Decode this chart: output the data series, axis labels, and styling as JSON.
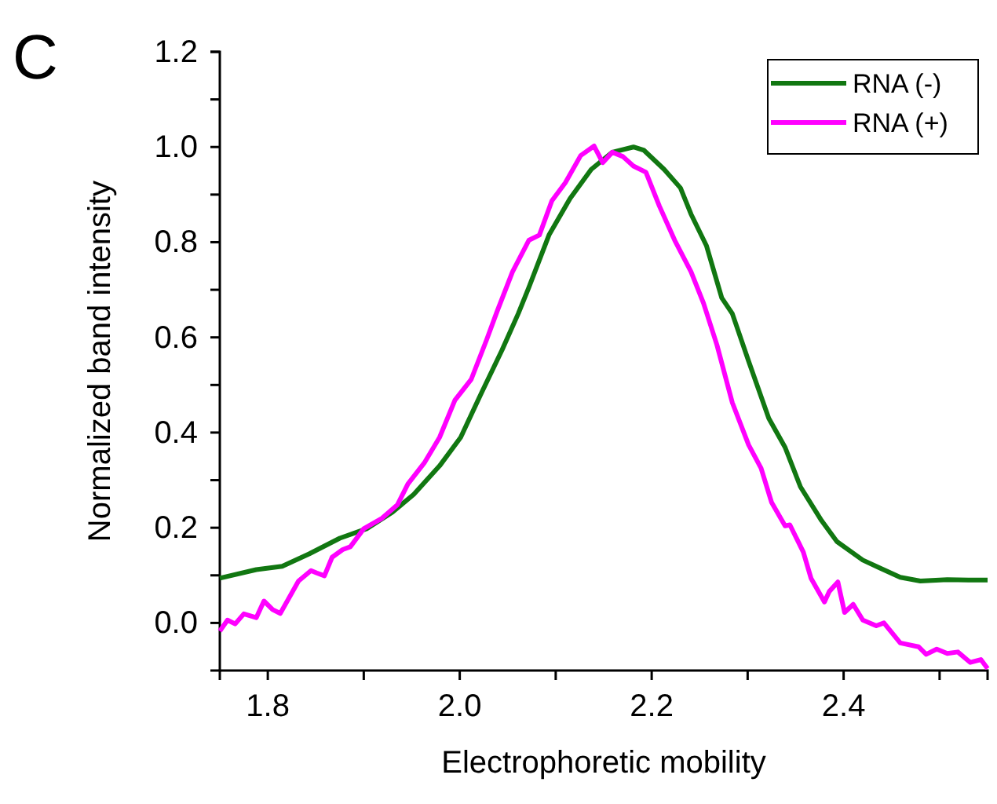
{
  "chart_data": {
    "type": "line",
    "xlabel": "Electrophoretic mobility",
    "ylabel": "Normalized band intensity",
    "annotations": [
      "C"
    ],
    "xlim": [
      1.75,
      2.55
    ],
    "xticks": [
      1.8,
      {
        "value": 1.9,
        "label": null
      },
      {
        "value": 2,
        "label": "2.0"
      },
      {
        "value": 2.1,
        "label": null
      },
      2.2,
      {
        "value": 2.3,
        "label": null
      },
      2.4,
      {
        "value": 2.5,
        "label": null
      }
    ],
    "ylim": [
      -0.1,
      1.2
    ],
    "yticks": [
      {
        "value": 0,
        "label": "0.0"
      },
      {
        "value": 0.1,
        "label": null
      },
      0.2,
      {
        "value": 0.3,
        "label": null
      },
      0.4,
      {
        "value": 0.5,
        "label": null
      },
      0.6,
      {
        "value": 0.7,
        "label": null
      },
      0.8,
      {
        "value": 0.9,
        "label": null
      },
      {
        "value": 1,
        "label": "1.0"
      },
      {
        "value": 1.1,
        "label": null
      },
      1.2
    ],
    "legend": "top right",
    "grid": false,
    "series": [
      {
        "name": "RNA (-)",
        "color": "#117711",
        "x": [
          1.75,
          1.788,
          1.815,
          1.843,
          1.875,
          1.903,
          1.93,
          1.952,
          1.979,
          2.001,
          2.023,
          2.044,
          2.061,
          2.072,
          2.093,
          2.115,
          2.137,
          2.159,
          2.181,
          2.192,
          2.213,
          2.23,
          2.241,
          2.257,
          2.273,
          2.284,
          2.301,
          2.322,
          2.339,
          2.355,
          2.377,
          2.393,
          2.42,
          2.437,
          2.459,
          2.48,
          2.508,
          2.53,
          2.55
        ],
        "values": [
          0.094,
          0.112,
          0.119,
          0.145,
          0.178,
          0.198,
          0.233,
          0.27,
          0.33,
          0.39,
          0.485,
          0.573,
          0.65,
          0.705,
          0.815,
          0.892,
          0.953,
          0.989,
          1.0,
          0.993,
          0.953,
          0.914,
          0.859,
          0.793,
          0.683,
          0.65,
          0.55,
          0.43,
          0.369,
          0.286,
          0.215,
          0.171,
          0.132,
          0.116,
          0.096,
          0.088,
          0.091,
          0.09,
          0.09
        ]
      },
      {
        "name": "RNA (+)",
        "color": "#ff00ff",
        "x": [
          1.75,
          1.758,
          1.766,
          1.775,
          1.788,
          1.796,
          1.805,
          1.813,
          1.832,
          1.845,
          1.851,
          1.859,
          1.867,
          1.878,
          1.886,
          1.9,
          1.919,
          1.935,
          1.946,
          1.963,
          1.979,
          1.995,
          2.012,
          2.028,
          2.039,
          2.055,
          2.072,
          2.083,
          2.096,
          2.11,
          2.126,
          2.14,
          2.149,
          2.159,
          2.17,
          2.181,
          2.194,
          2.208,
          2.224,
          2.241,
          2.254,
          2.268,
          2.284,
          2.301,
          2.314,
          2.325,
          2.339,
          2.344,
          2.358,
          2.366,
          2.38,
          2.385,
          2.394,
          2.401,
          2.41,
          2.42,
          2.434,
          2.442,
          2.459,
          2.478,
          2.486,
          2.497,
          2.508,
          2.519,
          2.532,
          2.543,
          2.55
        ],
        "values": [
          -0.017,
          0.006,
          -0.002,
          0.019,
          0.011,
          0.046,
          0.028,
          0.02,
          0.088,
          0.11,
          0.105,
          0.099,
          0.138,
          0.154,
          0.16,
          0.198,
          0.22,
          0.248,
          0.292,
          0.336,
          0.39,
          0.468,
          0.512,
          0.595,
          0.655,
          0.738,
          0.804,
          0.815,
          0.887,
          0.925,
          0.982,
          1.002,
          0.967,
          0.989,
          0.98,
          0.96,
          0.947,
          0.876,
          0.804,
          0.738,
          0.672,
          0.584,
          0.463,
          0.374,
          0.325,
          0.253,
          0.204,
          0.206,
          0.149,
          0.094,
          0.044,
          0.066,
          0.086,
          0.022,
          0.039,
          0.006,
          -0.006,
          0,
          -0.042,
          -0.05,
          -0.066,
          -0.055,
          -0.064,
          -0.061,
          -0.083,
          -0.077,
          -0.096
        ]
      }
    ]
  }
}
